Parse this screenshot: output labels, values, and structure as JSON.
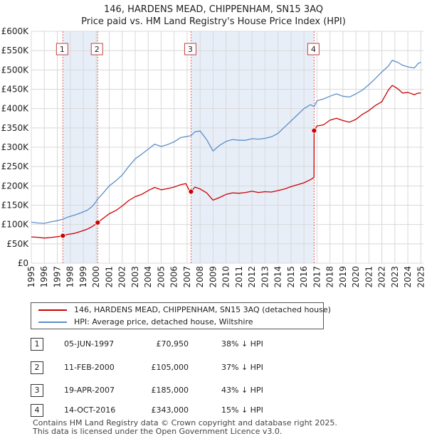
{
  "chart_data": {
    "type": "line",
    "title": "146, HARDENS MEAD, CHIPPENHAM, SN15 3AQ",
    "subtitle": "Price paid vs. HM Land Registry's House Price Index (HPI)",
    "xlabel": "",
    "ylabel": "",
    "xlim": [
      1995,
      2025.2
    ],
    "ylim": [
      0,
      600000
    ],
    "grid": true,
    "y_ticks": [
      0,
      50000,
      100000,
      150000,
      200000,
      250000,
      300000,
      350000,
      400000,
      450000,
      500000,
      550000,
      600000
    ],
    "y_tick_labels": [
      "£0",
      "£50K",
      "£100K",
      "£150K",
      "£200K",
      "£250K",
      "£300K",
      "£350K",
      "£400K",
      "£450K",
      "£500K",
      "£550K",
      "£600K"
    ],
    "x_tick_labels": [
      "1995",
      "1996",
      "1997",
      "1998",
      "1999",
      "2000",
      "2001",
      "2002",
      "2003",
      "2004",
      "2005",
      "2006",
      "2007",
      "2008",
      "2009",
      "2010",
      "2011",
      "2012",
      "2013",
      "2014",
      "2015",
      "2016",
      "2017",
      "2018",
      "2019",
      "2020",
      "2021",
      "2022",
      "2023",
      "2024",
      "2025"
    ],
    "series": [
      {
        "name": "146, HARDENS MEAD, CHIPPENHAM, SN15 3AQ (detached house)",
        "color": "#cc0000",
        "x": [
          1995.0,
          1995.5,
          1996.0,
          1996.5,
          1997.0,
          1997.43,
          1997.8,
          1998.3,
          1998.8,
          1999.3,
          1999.7,
          2000.0,
          2000.11,
          2000.5,
          2001.0,
          2001.5,
          2002.0,
          2002.5,
          2003.0,
          2003.5,
          2004.0,
          2004.5,
          2005.0,
          2005.5,
          2006.0,
          2006.5,
          2006.9,
          2007.2,
          2007.3,
          2007.6,
          2008.0,
          2008.5,
          2009.0,
          2009.5,
          2010.0,
          2010.5,
          2011.0,
          2011.5,
          2012.0,
          2012.5,
          2013.0,
          2013.5,
          2014.0,
          2014.5,
          2015.0,
          2015.5,
          2016.0,
          2016.5,
          2016.77,
          2016.78,
          2017.0,
          2017.5,
          2018.0,
          2018.5,
          2019.0,
          2019.5,
          2020.0,
          2020.5,
          2021.0,
          2021.5,
          2022.0,
          2022.5,
          2022.8,
          2023.2,
          2023.6,
          2024.0,
          2024.5,
          2024.8,
          2025.0
        ],
        "values": [
          68000,
          67000,
          65000,
          66500,
          68500,
          70950,
          74500,
          77000,
          82000,
          88000,
          95000,
          102000,
          105000,
          115000,
          128000,
          136000,
          148000,
          162000,
          172000,
          178000,
          188000,
          196000,
          190000,
          193000,
          197000,
          203000,
          206000,
          186000,
          185000,
          197000,
          192000,
          182000,
          163000,
          170000,
          178000,
          182000,
          181000,
          183000,
          186000,
          183000,
          185000,
          184000,
          188000,
          192000,
          198000,
          203000,
          208000,
          216000,
          222000,
          343000,
          355000,
          358000,
          370000,
          375000,
          369000,
          365000,
          372000,
          385000,
          395000,
          408000,
          418000,
          448000,
          460000,
          452000,
          440000,
          442000,
          436000,
          440000,
          440000
        ]
      },
      {
        "name": "HPI: Average price, detached house, Wiltshire",
        "color": "#5b8fc9",
        "x": [
          1995.0,
          1995.5,
          1996.0,
          1996.5,
          1997.0,
          1997.43,
          1997.8,
          1998.3,
          1998.8,
          1999.3,
          1999.7,
          2000.0,
          2000.11,
          2000.5,
          2001.0,
          2001.5,
          2002.0,
          2002.5,
          2003.0,
          2003.5,
          2004.0,
          2004.5,
          2005.0,
          2005.5,
          2006.0,
          2006.5,
          2007.0,
          2007.3,
          2007.6,
          2008.0,
          2008.5,
          2009.0,
          2009.5,
          2010.0,
          2010.5,
          2011.0,
          2011.5,
          2012.0,
          2012.5,
          2013.0,
          2013.5,
          2014.0,
          2014.5,
          2015.0,
          2015.5,
          2016.0,
          2016.5,
          2016.78,
          2017.0,
          2017.5,
          2018.0,
          2018.5,
          2019.0,
          2019.5,
          2020.0,
          2020.5,
          2021.0,
          2021.5,
          2022.0,
          2022.5,
          2022.8,
          2023.2,
          2023.6,
          2024.0,
          2024.5,
          2024.8,
          2025.0
        ],
        "values": [
          106000,
          104000,
          103000,
          107000,
          110000,
          114000,
          119000,
          124000,
          130000,
          137000,
          147000,
          160000,
          166000,
          180000,
          200000,
          213000,
          228000,
          250000,
          270000,
          282000,
          295000,
          308000,
          302000,
          307000,
          314000,
          325000,
          328000,
          330000,
          340000,
          342000,
          320000,
          290000,
          305000,
          315000,
          320000,
          318000,
          318000,
          322000,
          321000,
          323000,
          327000,
          336000,
          352000,
          368000,
          384000,
          400000,
          410000,
          405000,
          420000,
          425000,
          432000,
          438000,
          432000,
          430000,
          438000,
          448000,
          462000,
          478000,
          495000,
          510000,
          525000,
          520000,
          512000,
          508000,
          505000,
          517000,
          520000
        ]
      }
    ],
    "markers": [
      {
        "label": "1",
        "x": 1997.43,
        "value": 70950
      },
      {
        "label": "2",
        "x": 2000.11,
        "value": 105000
      },
      {
        "label": "3",
        "x": 2007.3,
        "value": 185000
      },
      {
        "label": "4",
        "x": 2016.78,
        "value": 343000
      }
    ],
    "shaded_spans": [
      [
        1997.43,
        2000.11
      ],
      [
        2007.3,
        2016.78
      ]
    ]
  },
  "legend": {
    "items": [
      {
        "label": "146, HARDENS MEAD, CHIPPENHAM, SN15 3AQ (detached house)",
        "color": "#cc0000"
      },
      {
        "label": "HPI: Average price, detached house, Wiltshire",
        "color": "#5b8fc9"
      }
    ]
  },
  "transactions": [
    {
      "num": "1",
      "date": "05-JUN-1997",
      "price": "£70,950",
      "hpi": "38% ↓ HPI"
    },
    {
      "num": "2",
      "date": "11-FEB-2000",
      "price": "£105,000",
      "hpi": "37% ↓ HPI"
    },
    {
      "num": "3",
      "date": "19-APR-2007",
      "price": "£185,000",
      "hpi": "43% ↓ HPI"
    },
    {
      "num": "4",
      "date": "14-OCT-2016",
      "price": "£343,000",
      "hpi": "15% ↓ HPI"
    }
  ],
  "footer": {
    "line1": "Contains HM Land Registry data © Crown copyright and database right 2025.",
    "line2": "This data is licensed under the Open Government Licence v3.0."
  }
}
